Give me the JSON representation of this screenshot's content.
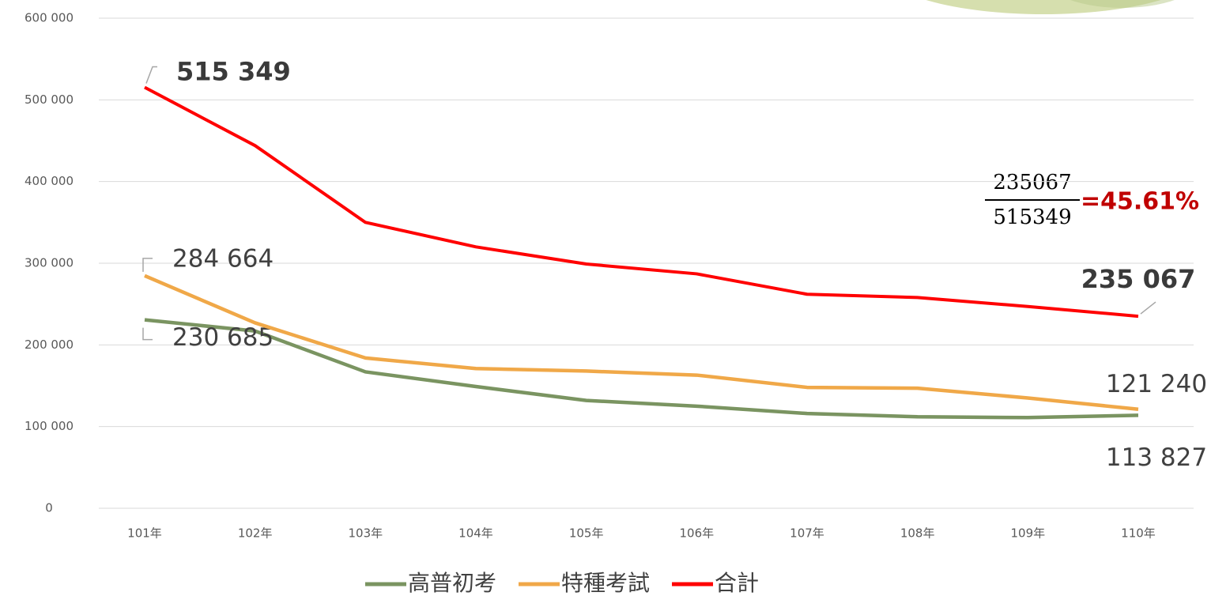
{
  "chart_data": {
    "type": "line",
    "categories": [
      "101年",
      "102年",
      "103年",
      "104年",
      "105年",
      "106年",
      "107年",
      "108年",
      "109年",
      "110年"
    ],
    "series": [
      {
        "name": "高普初考",
        "color": "#7a9461",
        "values": [
          230685,
          217000,
          167000,
          149000,
          132000,
          125000,
          116000,
          112000,
          111000,
          113827
        ],
        "value_labels": [
          "230 685",
          null,
          null,
          null,
          null,
          null,
          null,
          null,
          null,
          "113 827"
        ]
      },
      {
        "name": "特種考試",
        "color": "#f0a848",
        "values": [
          284664,
          227000,
          184000,
          171000,
          168000,
          163000,
          148000,
          147000,
          135000,
          121240
        ],
        "value_labels": [
          "284 664",
          null,
          null,
          null,
          null,
          null,
          null,
          null,
          null,
          "121 240"
        ]
      },
      {
        "name": "合計",
        "color": "#ff0000",
        "values": [
          515349,
          444000,
          350000,
          320000,
          299000,
          287000,
          262000,
          258000,
          247000,
          235067
        ],
        "value_labels": [
          "515 349",
          null,
          null,
          null,
          null,
          null,
          null,
          null,
          null,
          "235 067"
        ]
      }
    ],
    "ylim": [
      0,
      600000
    ],
    "yticks": [
      0,
      {
        "value": 100000,
        "label": "100 000"
      },
      {
        "value": 200000,
        "label": "200 000"
      },
      {
        "value": 300000,
        "label": "300 000"
      },
      {
        "value": 400000,
        "label": "400 000"
      },
      {
        "value": 500000,
        "label": "500 000"
      },
      {
        "value": 600000,
        "label": "600 000"
      }
    ],
    "grid": true,
    "legend": "bottom",
    "annotation": {
      "numerator": "235067",
      "denominator": "515349",
      "result": "=45.61%",
      "result_color": "#c00000"
    }
  }
}
